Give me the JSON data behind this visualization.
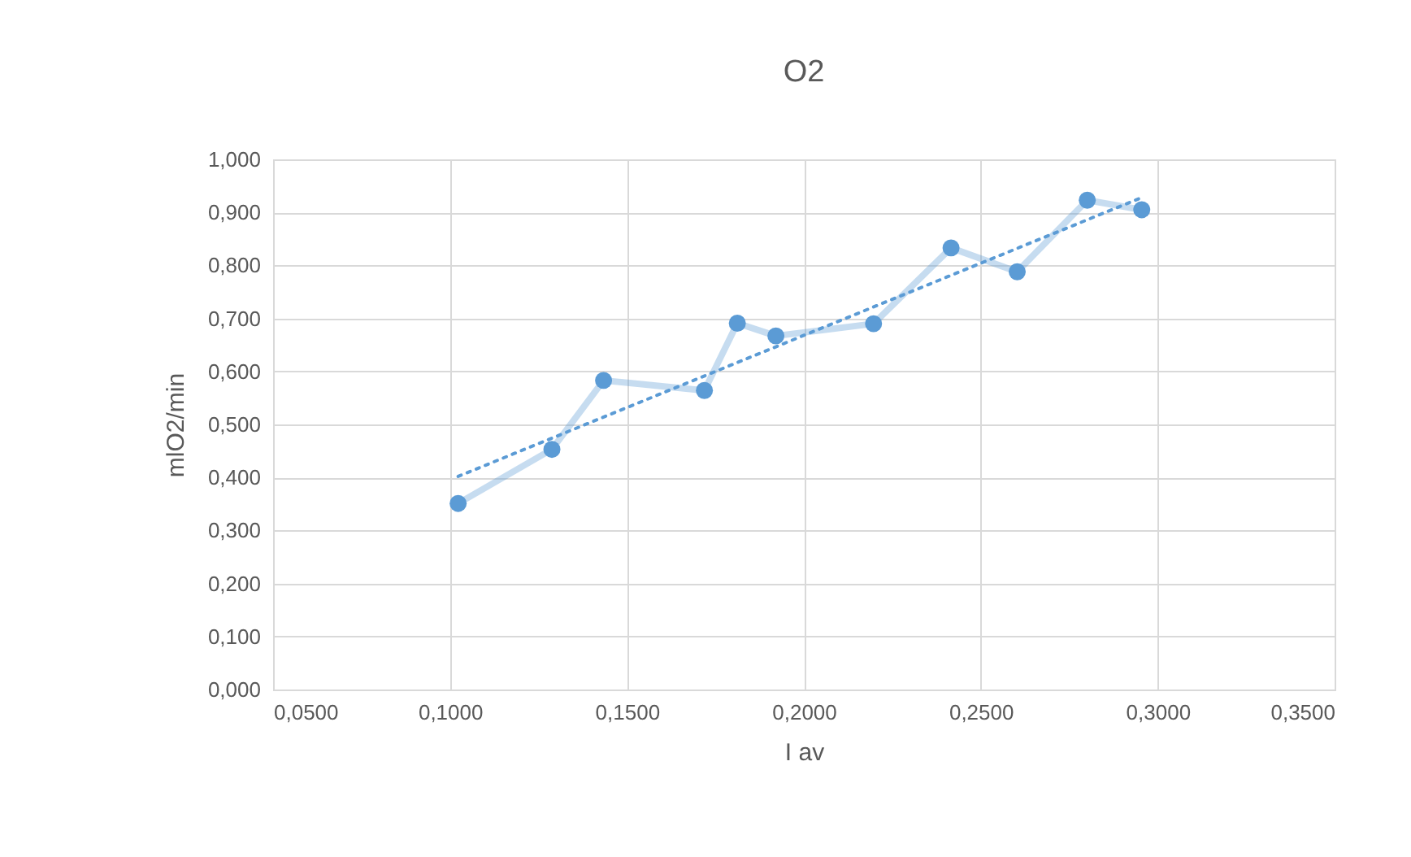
{
  "chart_data": {
    "type": "line",
    "title": "O2",
    "xlabel": "I av",
    "ylabel": "mlO2/min",
    "xlim": [
      0.05,
      0.35
    ],
    "ylim": [
      0,
      1
    ],
    "xticks": [
      {
        "value": 0.05,
        "label": "0,0500"
      },
      {
        "value": 0.1,
        "label": "0,1000"
      },
      {
        "value": 0.15,
        "label": "0,1500"
      },
      {
        "value": 0.2,
        "label": "0,2000"
      },
      {
        "value": 0.25,
        "label": "0,2500"
      },
      {
        "value": 0.3,
        "label": "0,3000"
      },
      {
        "value": 0.35,
        "label": "0,3500"
      }
    ],
    "yticks": [
      {
        "value": 0,
        "label": "0,000"
      },
      {
        "value": 0.1,
        "label": "0,100"
      },
      {
        "value": 0.2,
        "label": "0,200"
      },
      {
        "value": 0.3,
        "label": "0,300"
      },
      {
        "value": 0.4,
        "label": "0,400"
      },
      {
        "value": 0.5,
        "label": "0,500"
      },
      {
        "value": 0.6,
        "label": "0,600"
      },
      {
        "value": 0.7,
        "label": "0,700"
      },
      {
        "value": 0.8,
        "label": "0,800"
      },
      {
        "value": 0.9,
        "label": "0,900"
      },
      {
        "value": 1,
        "label": "1,000"
      }
    ],
    "grid": true,
    "marker": "circle",
    "series": [
      {
        "color": "#5b9bd5",
        "x": [
          0.1023,
          0.1288,
          0.1434,
          0.1719,
          0.1812,
          0.1921,
          0.2197,
          0.2416,
          0.2603,
          0.2801,
          0.2955
        ],
        "values": [
          0.351,
          0.453,
          0.583,
          0.564,
          0.691,
          0.667,
          0.69,
          0.833,
          0.788,
          0.923,
          0.905
        ]
      },
      {
        "type": "line",
        "color": "#5b9bd5",
        "marker": "none",
        "line_style": "dotted",
        "x": [
          0.1023,
          0.2955
        ],
        "values": [
          0.402,
          0.928
        ]
      }
    ]
  }
}
